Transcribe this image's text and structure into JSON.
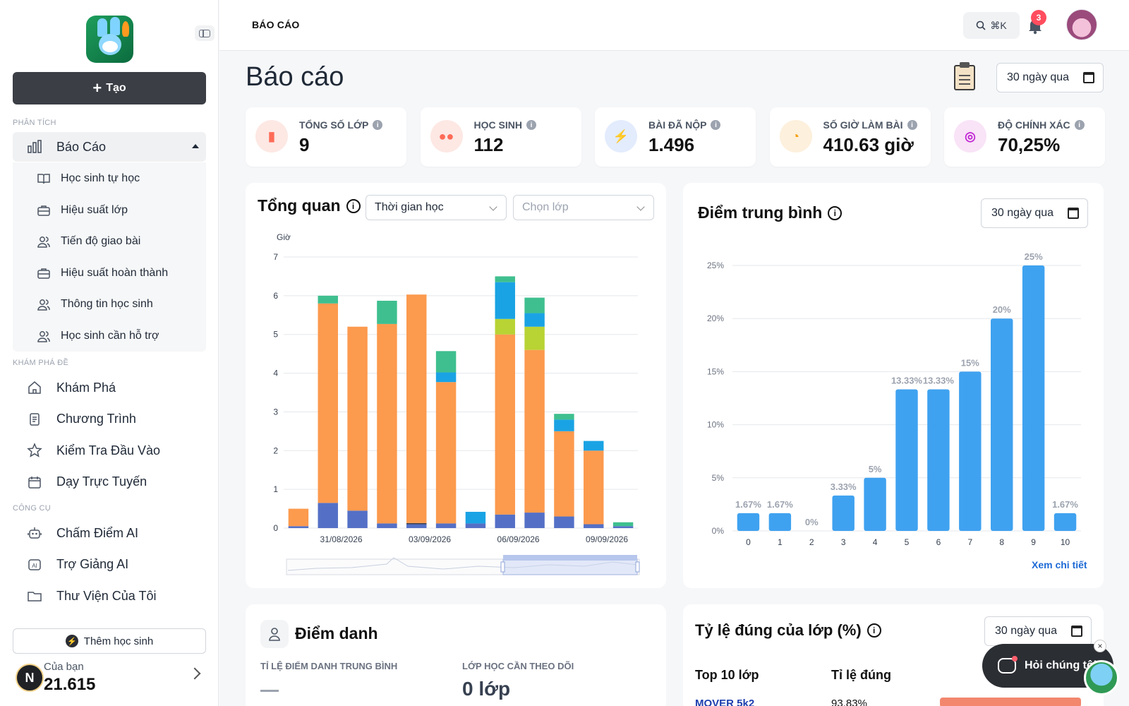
{
  "sidebar": {
    "create_label": "Tạo",
    "sections": {
      "analytics": "PHÂN TÍCH",
      "explore": "KHÁM PHÁ ĐỀ",
      "tools": "CÔNG CỤ"
    },
    "report": {
      "label": "Báo Cáo",
      "icon": "bar-chart-icon"
    },
    "report_items": [
      {
        "label": "Học sinh tự học",
        "icon": "book-icon"
      },
      {
        "label": "Hiệu suất lớp",
        "icon": "briefcase-icon"
      },
      {
        "label": "Tiến độ giao bài",
        "icon": "users-icon"
      },
      {
        "label": "Hiệu suất hoàn thành",
        "icon": "briefcase-icon"
      },
      {
        "label": "Thông tin học sinh",
        "icon": "users-icon"
      },
      {
        "label": "Học sinh cần hỗ trợ",
        "icon": "users-icon"
      }
    ],
    "explore_items": [
      {
        "label": "Khám Phá",
        "icon": "home-icon"
      },
      {
        "label": "Chương Trình",
        "icon": "document-icon"
      },
      {
        "label": "Kiểm Tra Đầu Vào",
        "icon": "star-icon"
      },
      {
        "label": "Dạy Trực Tuyến",
        "icon": "calendar-icon"
      }
    ],
    "tool_items": [
      {
        "label": "Chấm Điểm AI",
        "icon": "robot-icon"
      },
      {
        "label": "Trợ Giảng AI",
        "icon": "ai-assistant-icon"
      },
      {
        "label": "Thư Viện Của Tôi",
        "icon": "folder-icon"
      }
    ],
    "add_student": "Thêm học sinh",
    "points_label": "Của bạn",
    "points_value": "21.615",
    "user_initial": "N"
  },
  "header": {
    "breadcrumb": "BÁO CÁO",
    "search_shortcut": "⌘K",
    "notification_count": "3"
  },
  "page": {
    "title": "Báo cáo",
    "date_range": "30 ngày qua"
  },
  "stats": [
    {
      "label": "TỔNG SỐ LỚP",
      "value": "9",
      "icon": "bag-icon",
      "color": "#ff6b57"
    },
    {
      "label": "HỌC SINH",
      "value": "112",
      "icon": "group-icon",
      "color": "#ff6b57"
    },
    {
      "label": "BÀI ĐÃ NỘP",
      "value": "1.496",
      "icon": "lightning-icon",
      "color": "#3b82f6"
    },
    {
      "label": "SỐ GIỜ LÀM BÀI",
      "value": "410.63 giờ",
      "icon": "clock-icon",
      "color": "#f59e0b"
    },
    {
      "label": "ĐỘ CHÍNH XÁC",
      "value": "70,25%",
      "icon": "target-icon",
      "color": "#c026d3"
    }
  ],
  "overview": {
    "title": "Tổng quan",
    "metric_select": "Thời gian học",
    "class_select_placeholder": "Chọn lớp"
  },
  "average": {
    "title": "Điểm trung bình",
    "date_range": "30 ngày qua",
    "more_link": "Xem chi tiết"
  },
  "attendance": {
    "title": "Điểm danh",
    "avg_label": "TỈ LỆ ĐIỂM DANH TRUNG BÌNH",
    "avg_value": "—",
    "follow_label": "LỚP HỌC CẦN THEO DÕI",
    "follow_value": "0 lớp"
  },
  "class_accuracy": {
    "title": "Tỷ lệ đúng của lớp (%)",
    "date_range": "30 ngày qua",
    "col_top": "Top 10 lớp",
    "col_rate": "Tỉ lệ đúng",
    "first_row_name": "MOVER 5k2",
    "first_row_value": "93.83%"
  },
  "chat": {
    "label": "Hỏi chúng tôi"
  },
  "chart_data": [
    {
      "type": "bar",
      "stacked": true,
      "ylabel": "Giờ",
      "ylim": [
        0,
        7
      ],
      "yticks": [
        0,
        1,
        2,
        3,
        4,
        5,
        6,
        7
      ],
      "x_tick_labels": [
        "31/08/2026",
        "03/09/2026",
        "06/09/2026",
        "09/09/2026"
      ],
      "x_tick_bar_index": [
        2,
        5,
        8,
        11
      ],
      "series": [
        {
          "color": "#5470c6",
          "values": [
            0.05,
            0.65,
            0.45,
            0.12,
            0.1,
            0.12,
            0.12,
            0.35,
            0.4,
            0.3,
            0.1,
            0.05
          ]
        },
        {
          "color": "#3f3f46",
          "values": [
            0,
            0,
            0,
            0,
            0.03,
            0,
            0,
            0,
            0,
            0,
            0,
            0
          ]
        },
        {
          "color": "#fc9a4e",
          "values": [
            0.45,
            5.15,
            4.75,
            5.15,
            5.9,
            3.65,
            0,
            4.65,
            4.2,
            2.2,
            1.9,
            0
          ]
        },
        {
          "color": "#b8d334",
          "values": [
            0,
            0,
            0,
            0,
            0,
            0,
            0,
            0.4,
            0.6,
            0,
            0,
            0
          ]
        },
        {
          "color": "#1aa3e4",
          "values": [
            0,
            0,
            0,
            0,
            0,
            0.25,
            0.3,
            0.95,
            0.35,
            0.3,
            0.25,
            0
          ]
        },
        {
          "color": "#3fbf8f",
          "values": [
            0,
            0.2,
            0,
            0.6,
            0,
            0.55,
            0,
            0.15,
            0.4,
            0.15,
            0,
            0.1
          ]
        }
      ],
      "grid": true
    },
    {
      "type": "bar",
      "categories": [
        "0",
        "1",
        "2",
        "3",
        "4",
        "5",
        "6",
        "7",
        "8",
        "9",
        "10"
      ],
      "values": [
        1.67,
        1.67,
        0,
        3.33,
        5,
        13.33,
        13.33,
        15,
        20,
        25,
        1.67
      ],
      "data_labels": [
        "1.67%",
        "1.67%",
        "0%",
        "3.33%",
        "5%",
        "13.33%",
        "13.33%",
        "15%",
        "20%",
        "25%",
        "1.67%"
      ],
      "ylim": [
        0,
        25
      ],
      "yticks": [
        "0%",
        "5%",
        "10%",
        "15%",
        "20%",
        "25%"
      ],
      "color": "#3fa2f0",
      "grid": true
    }
  ]
}
